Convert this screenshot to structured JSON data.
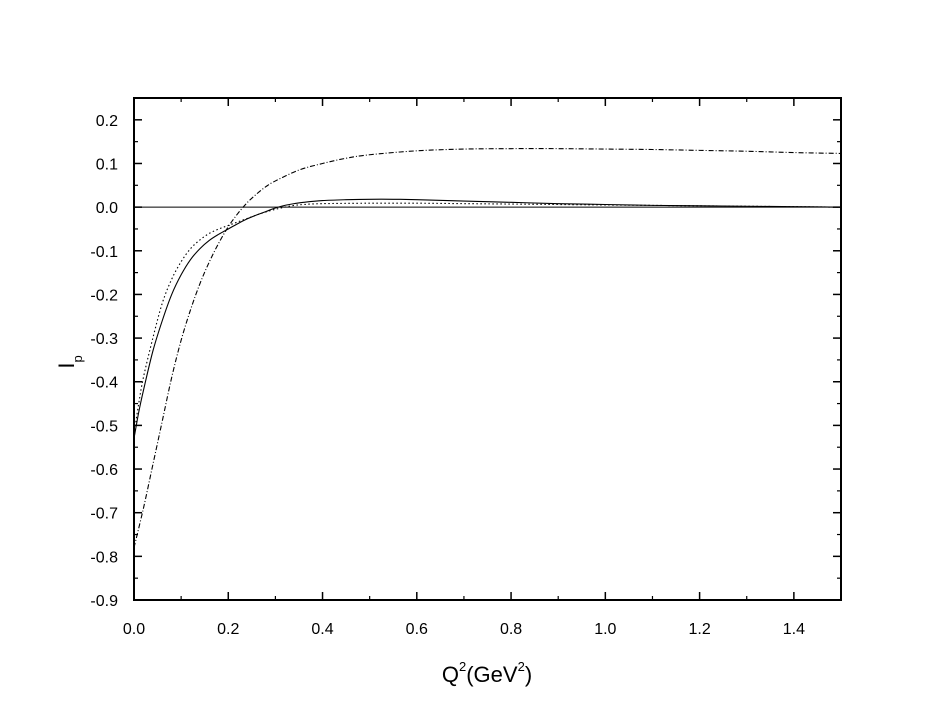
{
  "chart_data": {
    "type": "line",
    "title": "",
    "xlabel": {
      "base": "Q",
      "sup1": "2",
      "mid": "(GeV",
      "sup2": "2",
      "end": ")"
    },
    "ylabel": {
      "base": "I",
      "sub": "p"
    },
    "xlim": [
      0.0,
      1.5
    ],
    "ylim": [
      -0.9,
      0.25
    ],
    "xticks": [
      "0.0",
      "0.2",
      "0.4",
      "0.6",
      "0.8",
      "1.0",
      "1.2",
      "1.4"
    ],
    "yticks": [
      "0.2",
      "0.1",
      "0.0",
      "-0.1",
      "-0.2",
      "-0.3",
      "-0.4",
      "-0.5",
      "-0.6",
      "-0.7",
      "-0.8",
      "-0.9"
    ],
    "grid": false,
    "legend": "none",
    "reference_line": 0.0,
    "series": [
      {
        "style": "solid",
        "x": [
          0.0,
          0.01,
          0.02,
          0.04,
          0.06,
          0.08,
          0.1,
          0.12,
          0.14,
          0.16,
          0.18,
          0.2,
          0.22,
          0.24,
          0.26,
          0.28,
          0.3,
          0.32,
          0.34,
          0.36,
          0.4,
          0.45,
          0.5,
          0.55,
          0.6,
          0.7,
          0.8,
          0.9,
          1.0,
          1.1,
          1.2,
          1.3,
          1.4,
          1.5
        ],
        "y": [
          -0.53,
          -0.47,
          -0.42,
          -0.33,
          -0.26,
          -0.2,
          -0.155,
          -0.12,
          -0.095,
          -0.076,
          -0.062,
          -0.05,
          -0.038,
          -0.027,
          -0.018,
          -0.01,
          -0.002,
          0.004,
          0.008,
          0.011,
          0.015,
          0.017,
          0.018,
          0.018,
          0.017,
          0.014,
          0.011,
          0.008,
          0.006,
          0.004,
          0.003,
          0.002,
          0.001,
          0.0
        ]
      },
      {
        "style": "dotted",
        "x": [
          0.0,
          0.01,
          0.02,
          0.04,
          0.06,
          0.08,
          0.1,
          0.12,
          0.14,
          0.16,
          0.18,
          0.2,
          0.22,
          0.24,
          0.26,
          0.28,
          0.3,
          0.32,
          0.34,
          0.36,
          0.4,
          0.5,
          0.6,
          0.7,
          0.8,
          0.9,
          1.0,
          1.2,
          1.4,
          1.5
        ],
        "y": [
          -0.52,
          -0.45,
          -0.39,
          -0.3,
          -0.22,
          -0.165,
          -0.125,
          -0.095,
          -0.075,
          -0.06,
          -0.05,
          -0.042,
          -0.034,
          -0.026,
          -0.018,
          -0.011,
          -0.005,
          0.0,
          0.004,
          0.006,
          0.008,
          0.009,
          0.009,
          0.008,
          0.007,
          0.006,
          0.005,
          0.003,
          0.001,
          0.0
        ]
      },
      {
        "style": "dash-dot",
        "x": [
          0.0,
          0.02,
          0.04,
          0.06,
          0.08,
          0.1,
          0.12,
          0.14,
          0.16,
          0.18,
          0.2,
          0.22,
          0.24,
          0.26,
          0.28,
          0.3,
          0.35,
          0.4,
          0.45,
          0.5,
          0.6,
          0.7,
          0.8,
          0.9,
          1.0,
          1.1,
          1.2,
          1.3,
          1.4,
          1.5
        ],
        "y": [
          -0.78,
          -0.69,
          -0.59,
          -0.49,
          -0.39,
          -0.305,
          -0.235,
          -0.175,
          -0.125,
          -0.082,
          -0.045,
          -0.015,
          0.01,
          0.03,
          0.047,
          0.06,
          0.085,
          0.1,
          0.112,
          0.12,
          0.129,
          0.133,
          0.134,
          0.134,
          0.133,
          0.132,
          0.13,
          0.128,
          0.125,
          0.123
        ]
      }
    ]
  }
}
